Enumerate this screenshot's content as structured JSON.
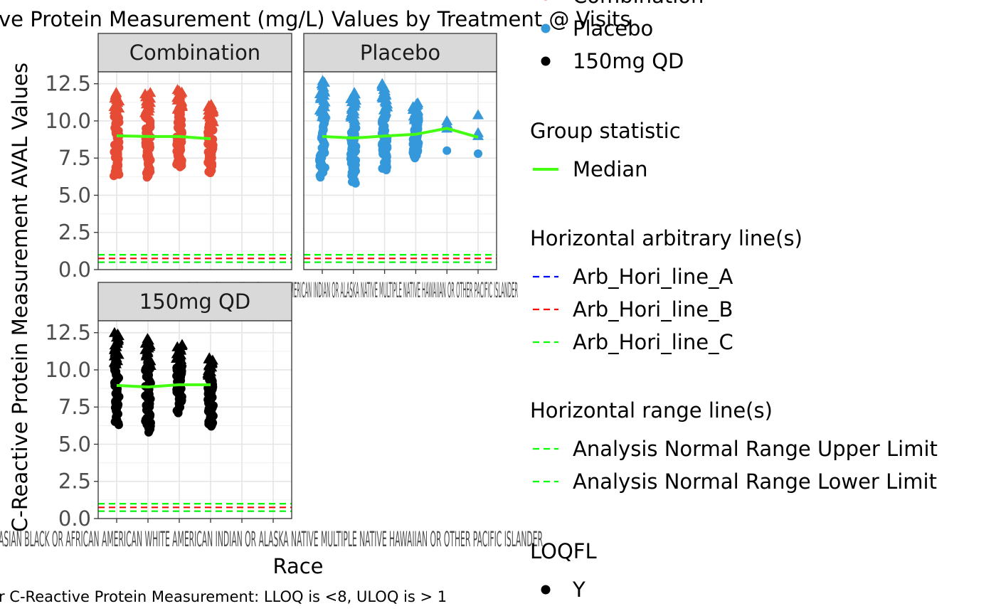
{
  "chart_data": {
    "type": "scatter",
    "title": "ve Protein Measurement (mg/L)  Values by Treatment @ Visits",
    "xlabel": "Race",
    "ylabel": "C-Reactive Protein Measurement AVAL Values",
    "caption": "r C-Reactive Protein Measurement: LLOQ is <8, ULOQ is > 1",
    "ylim": [
      0,
      13.3
    ],
    "yticks": [
      "0.0",
      "2.5",
      "5.0",
      "7.5",
      "10.0",
      "12.5"
    ],
    "x_categories": [
      "ASIAN",
      "BLACK OR AFRICAN AMERICAN",
      "WHITE",
      "AMERICAN INDIAN OR ALASKA NATIVE",
      "MULTIPLE",
      "NATIVE HAWAIIAN OR OTHER PACIFIC ISLANDER"
    ],
    "x_tick_text_placebo": "BLACK OR AFRICAN AMERICAN ASIAN WHITE AMERICAN INDIAN OR ALASKA NATIVE MULTIPLE NATIVE HAWAIIAN OR OTHER PACIFIC ISLANDER",
    "x_tick_text_bottom": "ASIAN BLACK OR AFRICAN AMERICAN WHITE AMERICAN INDIAN OR ALASKA NATIVE MULTIPLE NATIVE HAWAIIAN OR OTHER PACIFIC ISLANDER",
    "grid": true,
    "panels": [
      {
        "name": "Combination",
        "color": "#e64b35",
        "columns": [
          {
            "x": 0,
            "min": 6.3,
            "max": 11.9,
            "max_circle": 10.6,
            "median": 9.0
          },
          {
            "x": 1,
            "min": 6.2,
            "max": 11.9,
            "max_circle": 10.5,
            "median": 8.95
          },
          {
            "x": 2,
            "min": 6.9,
            "max": 12.1,
            "max_circle": 10.7,
            "median": 8.95
          },
          {
            "x": 3,
            "min": 6.5,
            "max": 11.1,
            "max_circle": 9.8,
            "median": 8.8
          }
        ]
      },
      {
        "name": "Placebo",
        "color": "#3498db",
        "columns": [
          {
            "x": 0,
            "min": 6.2,
            "max": 12.7,
            "max_circle": 10.2,
            "median": 8.95
          },
          {
            "x": 1,
            "min": 5.8,
            "max": 11.9,
            "max_circle": 10.0,
            "median": 8.85
          },
          {
            "x": 2,
            "min": 6.7,
            "max": 12.5,
            "max_circle": 10.5,
            "median": 8.98
          },
          {
            "x": 3,
            "min": 7.5,
            "max": 11.2,
            "max_circle": 10.0,
            "median": 9.1
          },
          {
            "x": 4,
            "min": 8.0,
            "max": 10.0,
            "max_circle": 9.5,
            "median": 9.5,
            "sparse": true
          },
          {
            "x": 5,
            "min": 7.8,
            "max": 10.4,
            "max_circle": 9.0,
            "median": 8.9,
            "sparse": true
          }
        ]
      },
      {
        "name": "150mg QD",
        "color": "#000000",
        "columns": [
          {
            "x": 0,
            "min": 6.3,
            "max": 12.5,
            "max_circle": 10.3,
            "median": 8.95
          },
          {
            "x": 1,
            "min": 5.8,
            "max": 12.1,
            "max_circle": 10.2,
            "median": 8.85
          },
          {
            "x": 2,
            "min": 7.1,
            "max": 11.7,
            "max_circle": 10.3,
            "median": 9.0
          },
          {
            "x": 3,
            "min": 6.2,
            "max": 10.8,
            "max_circle": 9.6,
            "median": 9.0
          }
        ]
      }
    ],
    "hlines": [
      {
        "name": "Arb_Hori_line_A",
        "y": 0.5,
        "color": "#0000ff"
      },
      {
        "name": "Arb_Hori_line_B",
        "y": 0.75,
        "color": "#ff0000"
      },
      {
        "name": "Arb_Hori_line_C",
        "y": 1.0,
        "color": "#00ff00"
      },
      {
        "name": "Analysis Normal Range Upper Limit",
        "y": 1.0,
        "color": "#00ff00"
      },
      {
        "name": "Analysis Normal Range Lower Limit",
        "y": 0.5,
        "color": "#00ff00"
      }
    ],
    "median_color": "#44ff11",
    "legend": {
      "placement": "right",
      "treatment_items": [
        {
          "label": "Combination",
          "color": "#e64b35"
        },
        {
          "label": "Placebo",
          "color": "#3498db"
        },
        {
          "label": "150mg QD",
          "color": "#000000"
        }
      ],
      "group_title": "Group statistic",
      "group_items": [
        {
          "label": "Median",
          "color": "#44ff11"
        }
      ],
      "arb_title": "Horizontal arbitrary line(s)",
      "arb_items": [
        {
          "label": "Arb_Hori_line_A",
          "color": "#0000ff"
        },
        {
          "label": "Arb_Hori_line_B",
          "color": "#ff0000"
        },
        {
          "label": "Arb_Hori_line_C",
          "color": "#00ff00"
        }
      ],
      "range_title": "Horizontal range line(s)",
      "range_items": [
        {
          "label": "Analysis Normal Range Upper Limit",
          "color": "#00ff00"
        },
        {
          "label": "Analysis Normal Range Lower Limit",
          "color": "#00ff00"
        }
      ],
      "loq_title": "LOQFL",
      "loq_items": [
        {
          "label": "Y",
          "color": "#000000"
        }
      ]
    }
  }
}
